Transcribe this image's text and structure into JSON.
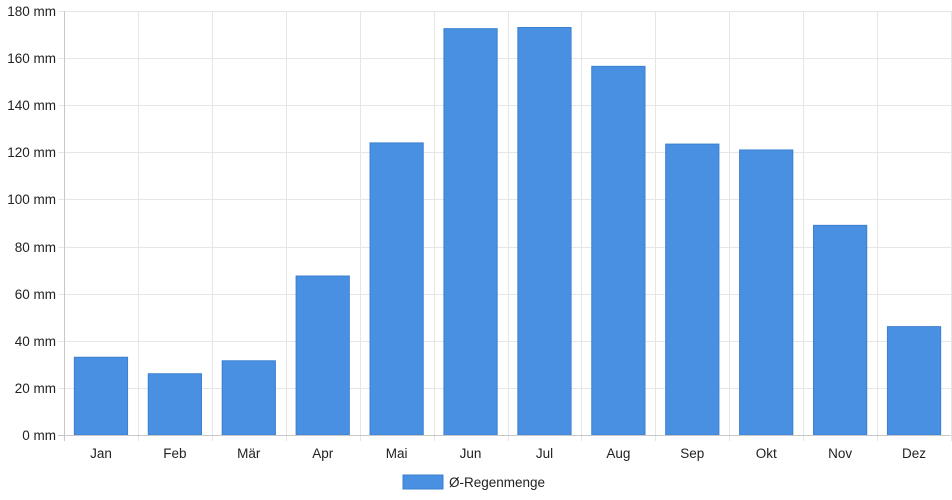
{
  "chart_data": {
    "type": "bar",
    "categories": [
      "Jan",
      "Feb",
      "Mär",
      "Apr",
      "Mai",
      "Jun",
      "Jul",
      "Aug",
      "Sep",
      "Okt",
      "Nov",
      "Dez"
    ],
    "series": [
      {
        "name": "Ø-Regenmenge",
        "values": [
          33,
          26,
          31.5,
          67.5,
          124,
          172.5,
          173,
          156.5,
          123.5,
          121,
          89,
          46
        ]
      }
    ],
    "y_unit": "mm",
    "ylim": [
      0,
      180
    ],
    "yticks": [
      0,
      20,
      40,
      60,
      80,
      100,
      120,
      140,
      160,
      180
    ],
    "grid": true,
    "legend_position": "bottom-center",
    "colors": {
      "bar": "#4a90e2",
      "bar_border": "#3b7fd0",
      "grid": "#e6e6e6",
      "axis": "#c8c8c8"
    }
  }
}
